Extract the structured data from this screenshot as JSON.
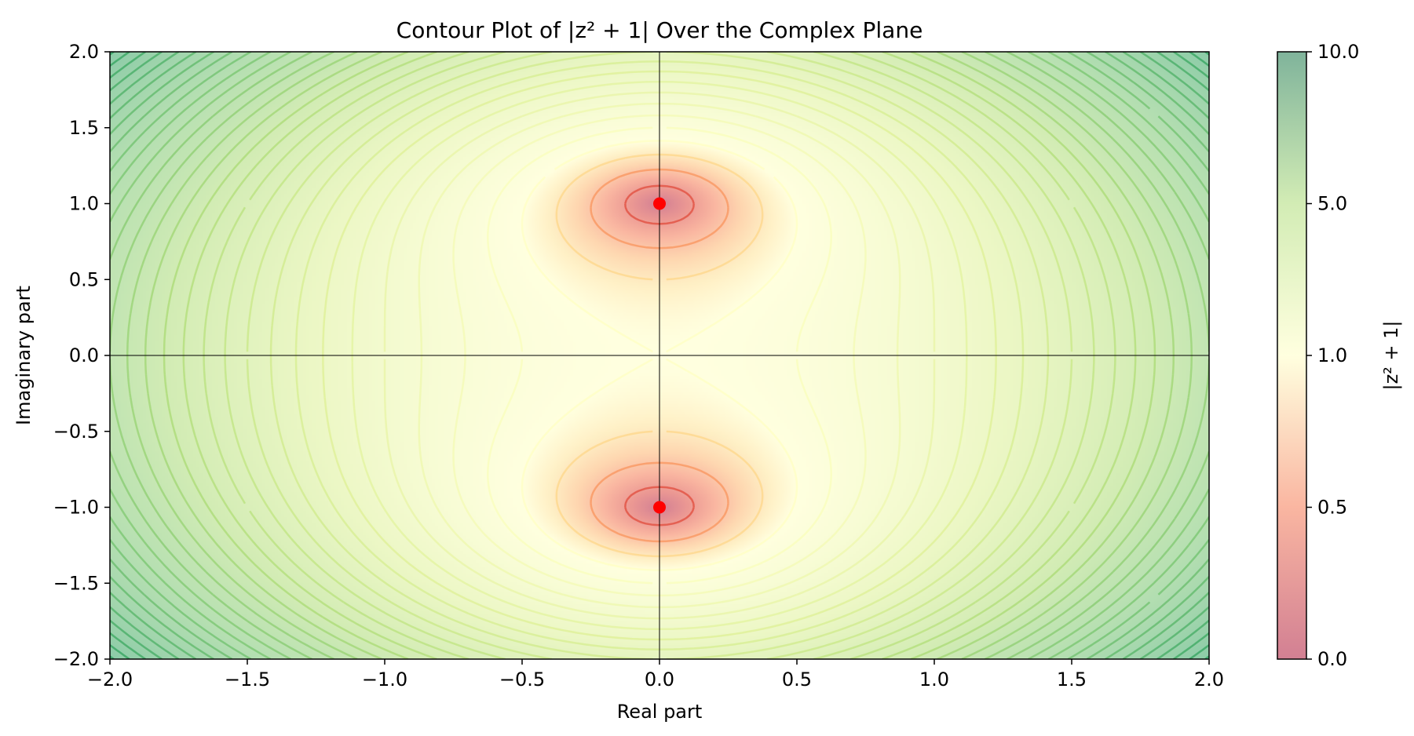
{
  "chart_data": {
    "type": "heatmap",
    "title": "Contour Plot of |z² + 1| Over the Complex Plane",
    "xlabel": "Real part",
    "ylabel": "Imaginary part",
    "xlim": [
      -2.0,
      2.0
    ],
    "ylim": [
      -2.0,
      2.0
    ],
    "x_ticks": [
      "−2.0",
      "−1.5",
      "−1.0",
      "−0.5",
      "0.0",
      "0.5",
      "1.0",
      "1.5",
      "2.0"
    ],
    "x_tick_values": [
      -2.0,
      -1.5,
      -1.0,
      -0.5,
      0.0,
      0.5,
      1.0,
      1.5,
      2.0
    ],
    "y_ticks": [
      "−2.0",
      "−1.5",
      "−1.0",
      "−0.5",
      "0.0",
      "0.5",
      "1.0",
      "1.5",
      "2.0"
    ],
    "y_tick_values": [
      -2.0,
      -1.5,
      -1.0,
      -0.5,
      0.0,
      0.5,
      1.0,
      1.5,
      2.0
    ],
    "function": "|z^2 + 1|",
    "zeros": [
      {
        "x": 0.0,
        "y": 1.0
      },
      {
        "x": 0.0,
        "y": -1.0
      }
    ],
    "reference_lines": {
      "x": 0.0,
      "y": 0.0
    },
    "colorbar": {
      "label": "|z² + 1|",
      "ticks": [
        "0.0",
        "0.5",
        "1.0",
        "5.0",
        "10.0"
      ],
      "tick_values": [
        0.0,
        0.5,
        1.0,
        5.0,
        10.0
      ],
      "colormap": "RdYlGn",
      "alpha": 0.5
    },
    "contour_levels_max": 10.0,
    "contour_level_step": 0.25,
    "colors": {
      "zero_marker": "#ff0000",
      "low": "#a50026",
      "mid": "#ffffbf",
      "high": "#006837"
    }
  }
}
